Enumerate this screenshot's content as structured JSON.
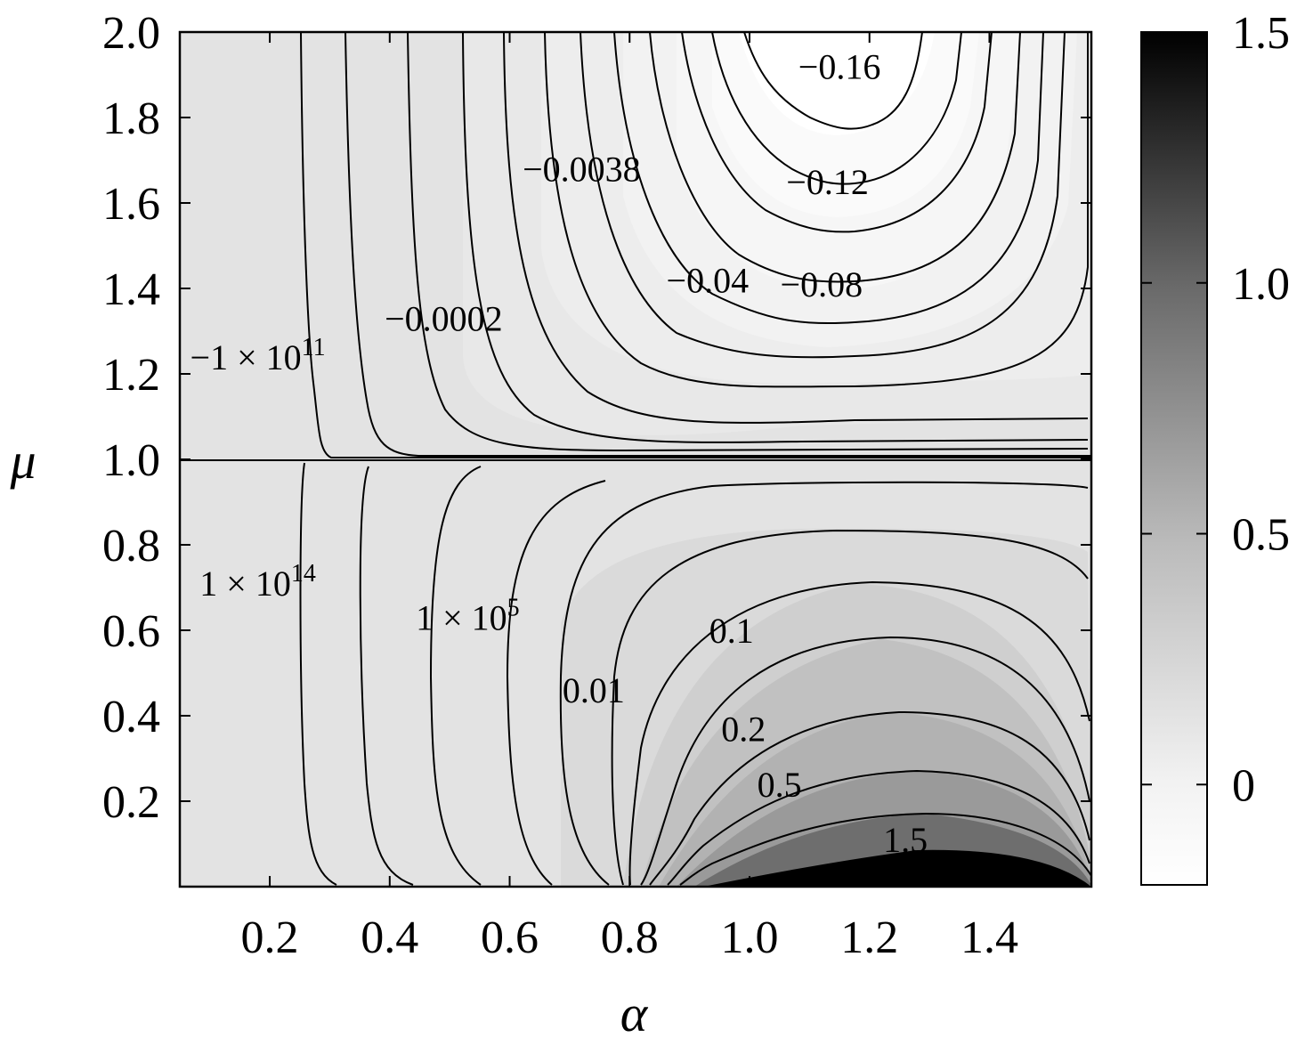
{
  "chart_data": {
    "type": "contour",
    "xlabel": "α",
    "ylabel": "μ",
    "xlim": [
      0.05,
      1.57
    ],
    "ylim": [
      0.0,
      2.0
    ],
    "x_ticks": [
      {
        "value": 0.2,
        "label": "0.2"
      },
      {
        "value": 0.4,
        "label": "0.4"
      },
      {
        "value": 0.6,
        "label": "0.6"
      },
      {
        "value": 0.8,
        "label": "0.8"
      },
      {
        "value": 1.0,
        "label": "1.0"
      },
      {
        "value": 1.2,
        "label": "1.2"
      },
      {
        "value": 1.4,
        "label": "1.4"
      }
    ],
    "y_ticks": [
      {
        "value": 0.2,
        "label": "0.2"
      },
      {
        "value": 0.4,
        "label": "0.4"
      },
      {
        "value": 0.6,
        "label": "0.6"
      },
      {
        "value": 0.8,
        "label": "0.8"
      },
      {
        "value": 1.0,
        "label": "1.0"
      },
      {
        "value": 1.2,
        "label": "1.2"
      },
      {
        "value": 1.4,
        "label": "1.4"
      },
      {
        "value": 1.6,
        "label": "1.6"
      },
      {
        "value": 1.8,
        "label": "1.8"
      },
      {
        "value": 2.0,
        "label": "2.0"
      }
    ],
    "colorbar": {
      "range": [
        -0.2,
        1.5
      ],
      "colormap": "white-to-black (grayscale)",
      "ticks": [
        {
          "value": 0,
          "label": "0"
        },
        {
          "value": 0.5,
          "label": "0.5"
        },
        {
          "value": 1.0,
          "label": "1.0"
        },
        {
          "value": 1.5,
          "label": "1.5"
        }
      ]
    },
    "contour_levels_upper": [
      -100000000000.0,
      -0.0002,
      -0.0038,
      -0.04,
      -0.08,
      -0.12,
      -0.16
    ],
    "contour_levels_lower": [
      100000000000000.0,
      100000.0,
      0.01,
      0.1,
      0.2,
      0.5,
      1.5
    ],
    "contour_labels": [
      {
        "text": "−0.16",
        "alpha": 1.15,
        "mu": 1.92
      },
      {
        "text": "−0.12",
        "alpha": 1.13,
        "mu": 1.65
      },
      {
        "text": "−0.08",
        "alpha": 1.12,
        "mu": 1.41
      },
      {
        "text": "−0.04",
        "alpha": 0.93,
        "mu": 1.42
      },
      {
        "text": "−0.0038",
        "alpha": 0.72,
        "mu": 1.68
      },
      {
        "text": "−0.0002",
        "alpha": 0.49,
        "mu": 1.33
      },
      {
        "text": "−1 × 10",
        "sup": "11",
        "alpha": 0.18,
        "mu": 1.24
      },
      {
        "text": "1 × 10",
        "sup": "14",
        "alpha": 0.18,
        "mu": 0.71
      },
      {
        "text": "1 × 10",
        "sup": "5",
        "alpha": 0.53,
        "mu": 0.63
      },
      {
        "text": "0.01",
        "alpha": 0.74,
        "mu": 0.46
      },
      {
        "text": "0.1",
        "alpha": 0.97,
        "mu": 0.6
      },
      {
        "text": "0.2",
        "alpha": 0.99,
        "mu": 0.37
      },
      {
        "text": "0.5",
        "alpha": 1.05,
        "mu": 0.24
      },
      {
        "text": "1.5",
        "alpha": 1.26,
        "mu": 0.11
      }
    ]
  }
}
